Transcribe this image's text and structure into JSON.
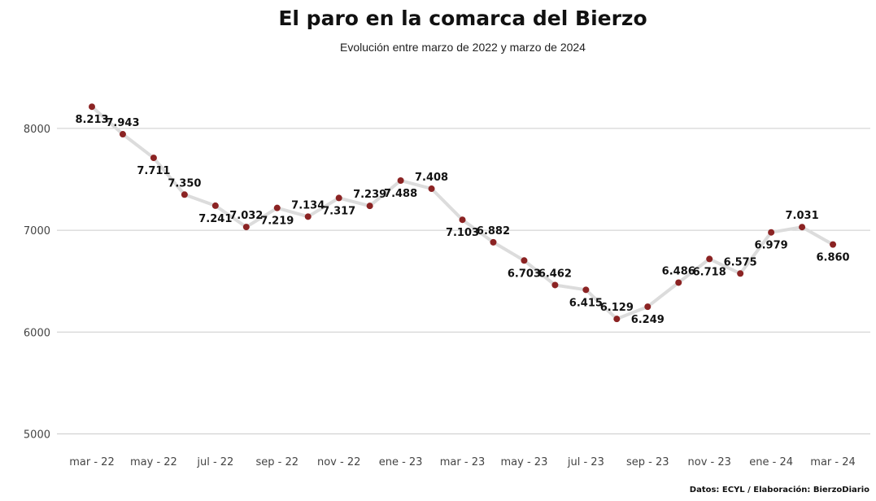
{
  "title": "El paro en la comarca del Bierzo",
  "subtitle": "Evolución entre marzo de 2022 y marzo de 2024",
  "source": "Datos: ECYL / Elaboración: BierzoDiario",
  "colors": {
    "line": "#dcdcdc",
    "point": "#8b2323",
    "grid": "#cccccc",
    "text": "#111111"
  },
  "chart_data": {
    "type": "line",
    "title": "El paro en la comarca del Bierzo",
    "subtitle": "Evolución entre marzo de 2022 y marzo de 2024",
    "xlabel": "",
    "ylabel": "",
    "ylim": [
      4800,
      8400
    ],
    "yticks": [
      5000,
      6000,
      7000,
      8000
    ],
    "grid": true,
    "x": [
      "mar 22",
      "abr 22",
      "may 22",
      "jun 22",
      "jul 22",
      "ago 22",
      "sep 22",
      "oct 22",
      "nov 22",
      "dic 22",
      "ene 23",
      "feb 23",
      "mar 23",
      "abr 23",
      "may 23",
      "jun 23",
      "jul 23",
      "ago 23",
      "sep 23",
      "oct 23",
      "nov 23",
      "dic 23",
      "ene 24",
      "feb 24",
      "mar 24"
    ],
    "xtick_labels": [
      "mar - 22",
      "may - 22",
      "jul - 22",
      "sep - 22",
      "nov - 22",
      "ene - 23",
      "mar - 23",
      "may - 23",
      "jul - 23",
      "sep - 23",
      "nov - 23",
      "ene - 24",
      "mar - 24"
    ],
    "xtick_positions": [
      0,
      2,
      4,
      6,
      8,
      10,
      12,
      14,
      16,
      18,
      20,
      22,
      24
    ],
    "values": [
      8213,
      7943,
      7711,
      7350,
      7241,
      7032,
      7219,
      7134,
      7317,
      7239,
      7488,
      7408,
      7103,
      6882,
      6703,
      6462,
      6415,
      6129,
      6249,
      6486,
      6718,
      6575,
      6979,
      7031,
      6860
    ],
    "labels": [
      "8.213",
      "7.943",
      "7.711",
      "7.350",
      "7.241",
      "7.032",
      "7.219",
      "7.134",
      "7.317",
      "7.239",
      "7.488",
      "7.408",
      "7.103",
      "6.882",
      "6.703",
      "6.462",
      "6.415",
      "6.129",
      "6.249",
      "6.486",
      "6.718",
      "6.575",
      "6.979",
      "7.031",
      "6.860"
    ],
    "label_pos": [
      "below",
      "above",
      "below",
      "above",
      "below",
      "above",
      "below",
      "above",
      "below",
      "above",
      "below",
      "above",
      "below",
      "above",
      "below",
      "above",
      "below",
      "above",
      "below",
      "above",
      "below",
      "above",
      "below",
      "above",
      "below"
    ]
  }
}
